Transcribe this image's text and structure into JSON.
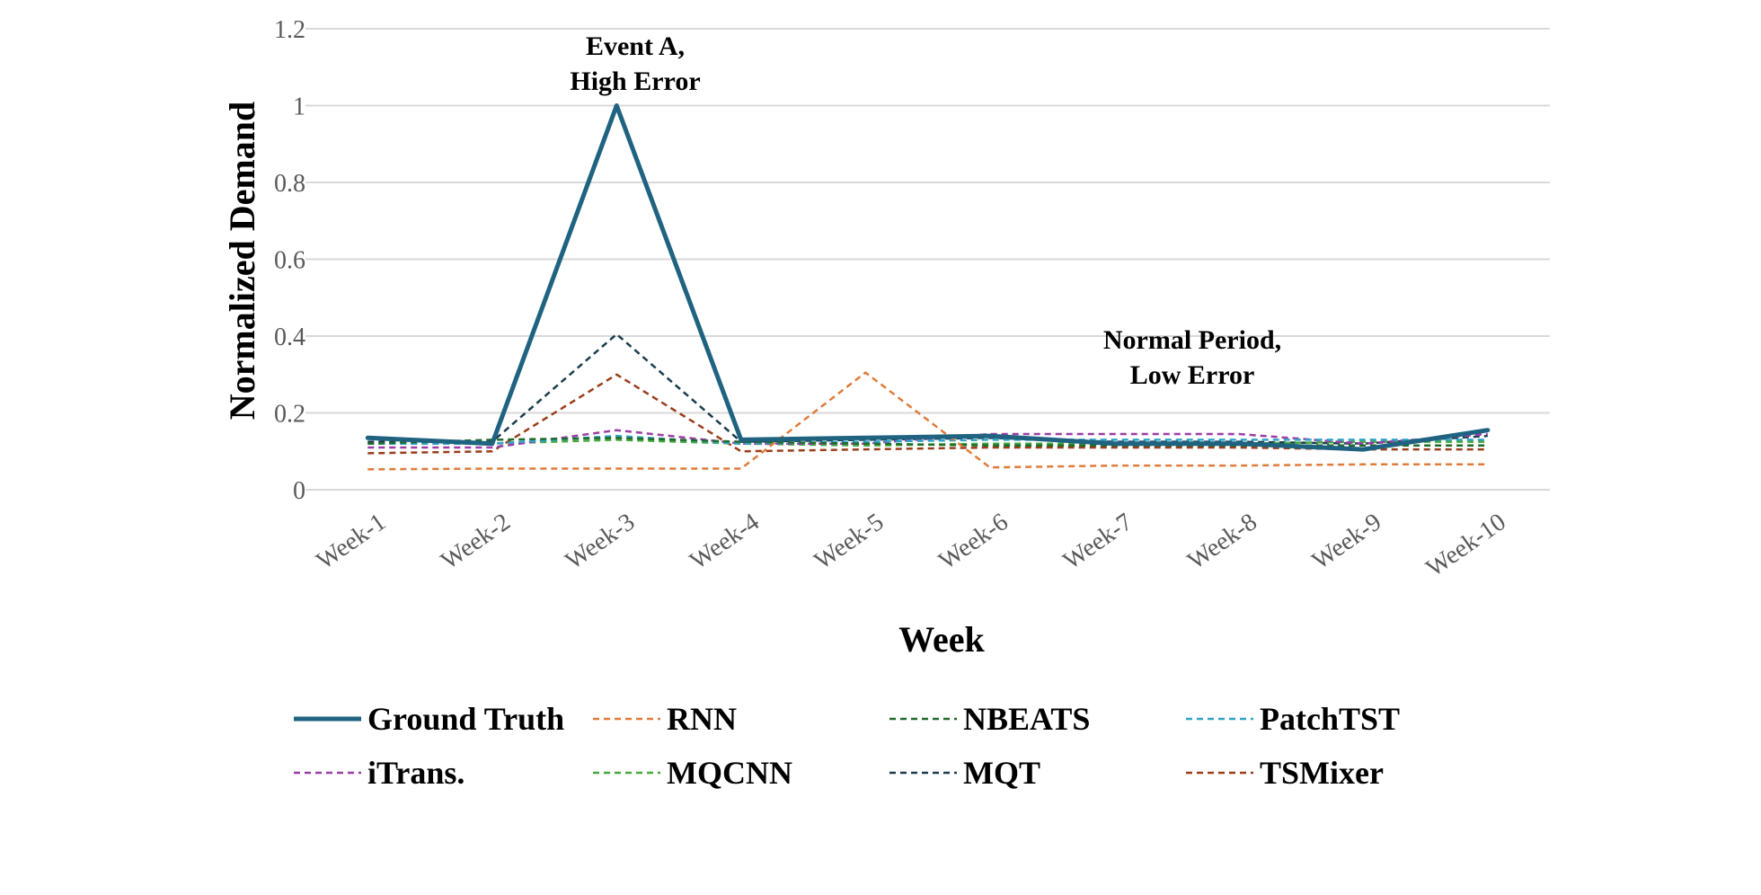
{
  "chart_data": {
    "type": "line",
    "title": "",
    "xlabel": "Week",
    "ylabel": "Normalized Demand",
    "categories": [
      "Week-1",
      "Week-2",
      "Week-3",
      "Week-4",
      "Week-5",
      "Week-6",
      "Week-7",
      "Week-8",
      "Week-9",
      "Week-10"
    ],
    "ylim": [
      0,
      1.2
    ],
    "yticks": [
      "0",
      "0.2",
      "0.4",
      "0.6",
      "0.8",
      "1",
      "1.2"
    ],
    "grid": true,
    "legend_position": "bottom",
    "series": [
      {
        "name": "Ground Truth",
        "color": "#1F6381",
        "style": "solid",
        "values": [
          0.135,
          0.12,
          1.0,
          0.13,
          0.135,
          0.14,
          0.12,
          0.12,
          0.105,
          0.155
        ]
      },
      {
        "name": "RNN",
        "color": "#E07B39",
        "style": "dashed",
        "values": [
          0.053,
          0.055,
          0.055,
          0.055,
          0.305,
          0.058,
          0.063,
          0.063,
          0.066,
          0.066
        ]
      },
      {
        "name": "NBEATS",
        "color": "#1F6B2A",
        "style": "dashed",
        "values": [
          0.12,
          0.13,
          0.135,
          0.125,
          0.12,
          0.115,
          0.115,
          0.115,
          0.115,
          0.115
        ]
      },
      {
        "name": "PatchTST",
        "color": "#2FA3C8",
        "style": "dashed",
        "values": [
          0.12,
          0.12,
          0.14,
          0.12,
          0.125,
          0.13,
          0.13,
          0.13,
          0.13,
          0.13
        ]
      },
      {
        "name": "iTrans.",
        "color": "#9C3DA8",
        "style": "dashed",
        "values": [
          0.11,
          0.11,
          0.155,
          0.12,
          0.12,
          0.145,
          0.145,
          0.145,
          0.12,
          0.145
        ]
      },
      {
        "name": "MQCNN",
        "color": "#46A83C",
        "style": "dashed",
        "values": [
          0.12,
          0.12,
          0.13,
          0.12,
          0.115,
          0.12,
          0.12,
          0.12,
          0.125,
          0.125
        ]
      },
      {
        "name": "MQT",
        "color": "#1B3C4F",
        "style": "dashed",
        "values": [
          0.125,
          0.125,
          0.405,
          0.125,
          0.13,
          0.135,
          0.125,
          0.125,
          0.12,
          0.14
        ]
      },
      {
        "name": "TSMixer",
        "color": "#9A3E1A",
        "style": "dashed",
        "values": [
          0.095,
          0.1,
          0.3,
          0.1,
          0.105,
          0.11,
          0.11,
          0.11,
          0.105,
          0.105
        ]
      }
    ],
    "annotations": [
      {
        "lines": [
          "Event A,",
          "High Error"
        ]
      },
      {
        "lines": [
          "Normal Period,",
          "Low Error"
        ]
      }
    ]
  }
}
